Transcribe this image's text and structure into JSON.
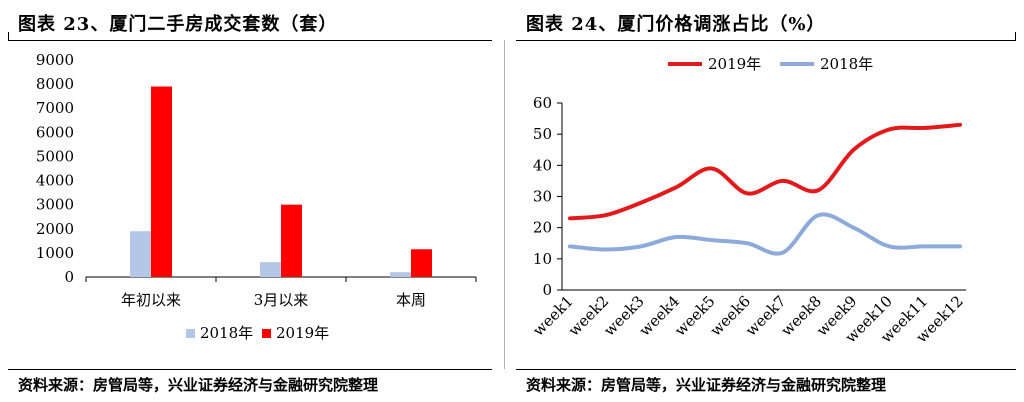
{
  "left_panel": {
    "title": "图表 23、厦门二手房成交套数（套）",
    "source": "资料来源：房管局等，兴业证券经济与金融研究院整理"
  },
  "right_panel": {
    "title": "图表 24、厦门价格调涨占比（%）",
    "source": "资料来源：房管局等，兴业证券经济与金融研究院整理"
  },
  "colors": {
    "red": "#ff0000",
    "red_line": "#e31a1c",
    "light_blue": "#b4c7e7",
    "blue_line": "#8eaadb"
  },
  "chart_data": [
    {
      "type": "bar",
      "title": "",
      "categories": [
        "年初以来",
        "3月以来",
        "本周"
      ],
      "series": [
        {
          "name": "2018年",
          "values": [
            1900,
            620,
            200
          ]
        },
        {
          "name": "2019年",
          "values": [
            7900,
            3000,
            1150
          ]
        }
      ],
      "yticks": [
        "0",
        "1000",
        "2000",
        "3000",
        "4000",
        "5000",
        "6000",
        "7000",
        "8000",
        "9000"
      ],
      "ylim": [
        0,
        9000
      ],
      "legend": "bottom"
    },
    {
      "type": "line",
      "title": "",
      "categories": [
        "week1",
        "week2",
        "week3",
        "week4",
        "week5",
        "week6",
        "week7",
        "week8",
        "week9",
        "week10",
        "week11",
        "week12"
      ],
      "series": [
        {
          "name": "2019年",
          "values": [
            23,
            24,
            28,
            33,
            39,
            31,
            35,
            32,
            45,
            51.5,
            52,
            53
          ]
        },
        {
          "name": "2018年",
          "values": [
            14,
            13,
            14,
            17,
            16,
            15,
            12,
            24,
            20,
            14,
            14,
            14
          ]
        }
      ],
      "yticks": [
        "0",
        "10",
        "20",
        "30",
        "40",
        "50",
        "60"
      ],
      "ylim": [
        0,
        60
      ],
      "legend": "top"
    }
  ]
}
